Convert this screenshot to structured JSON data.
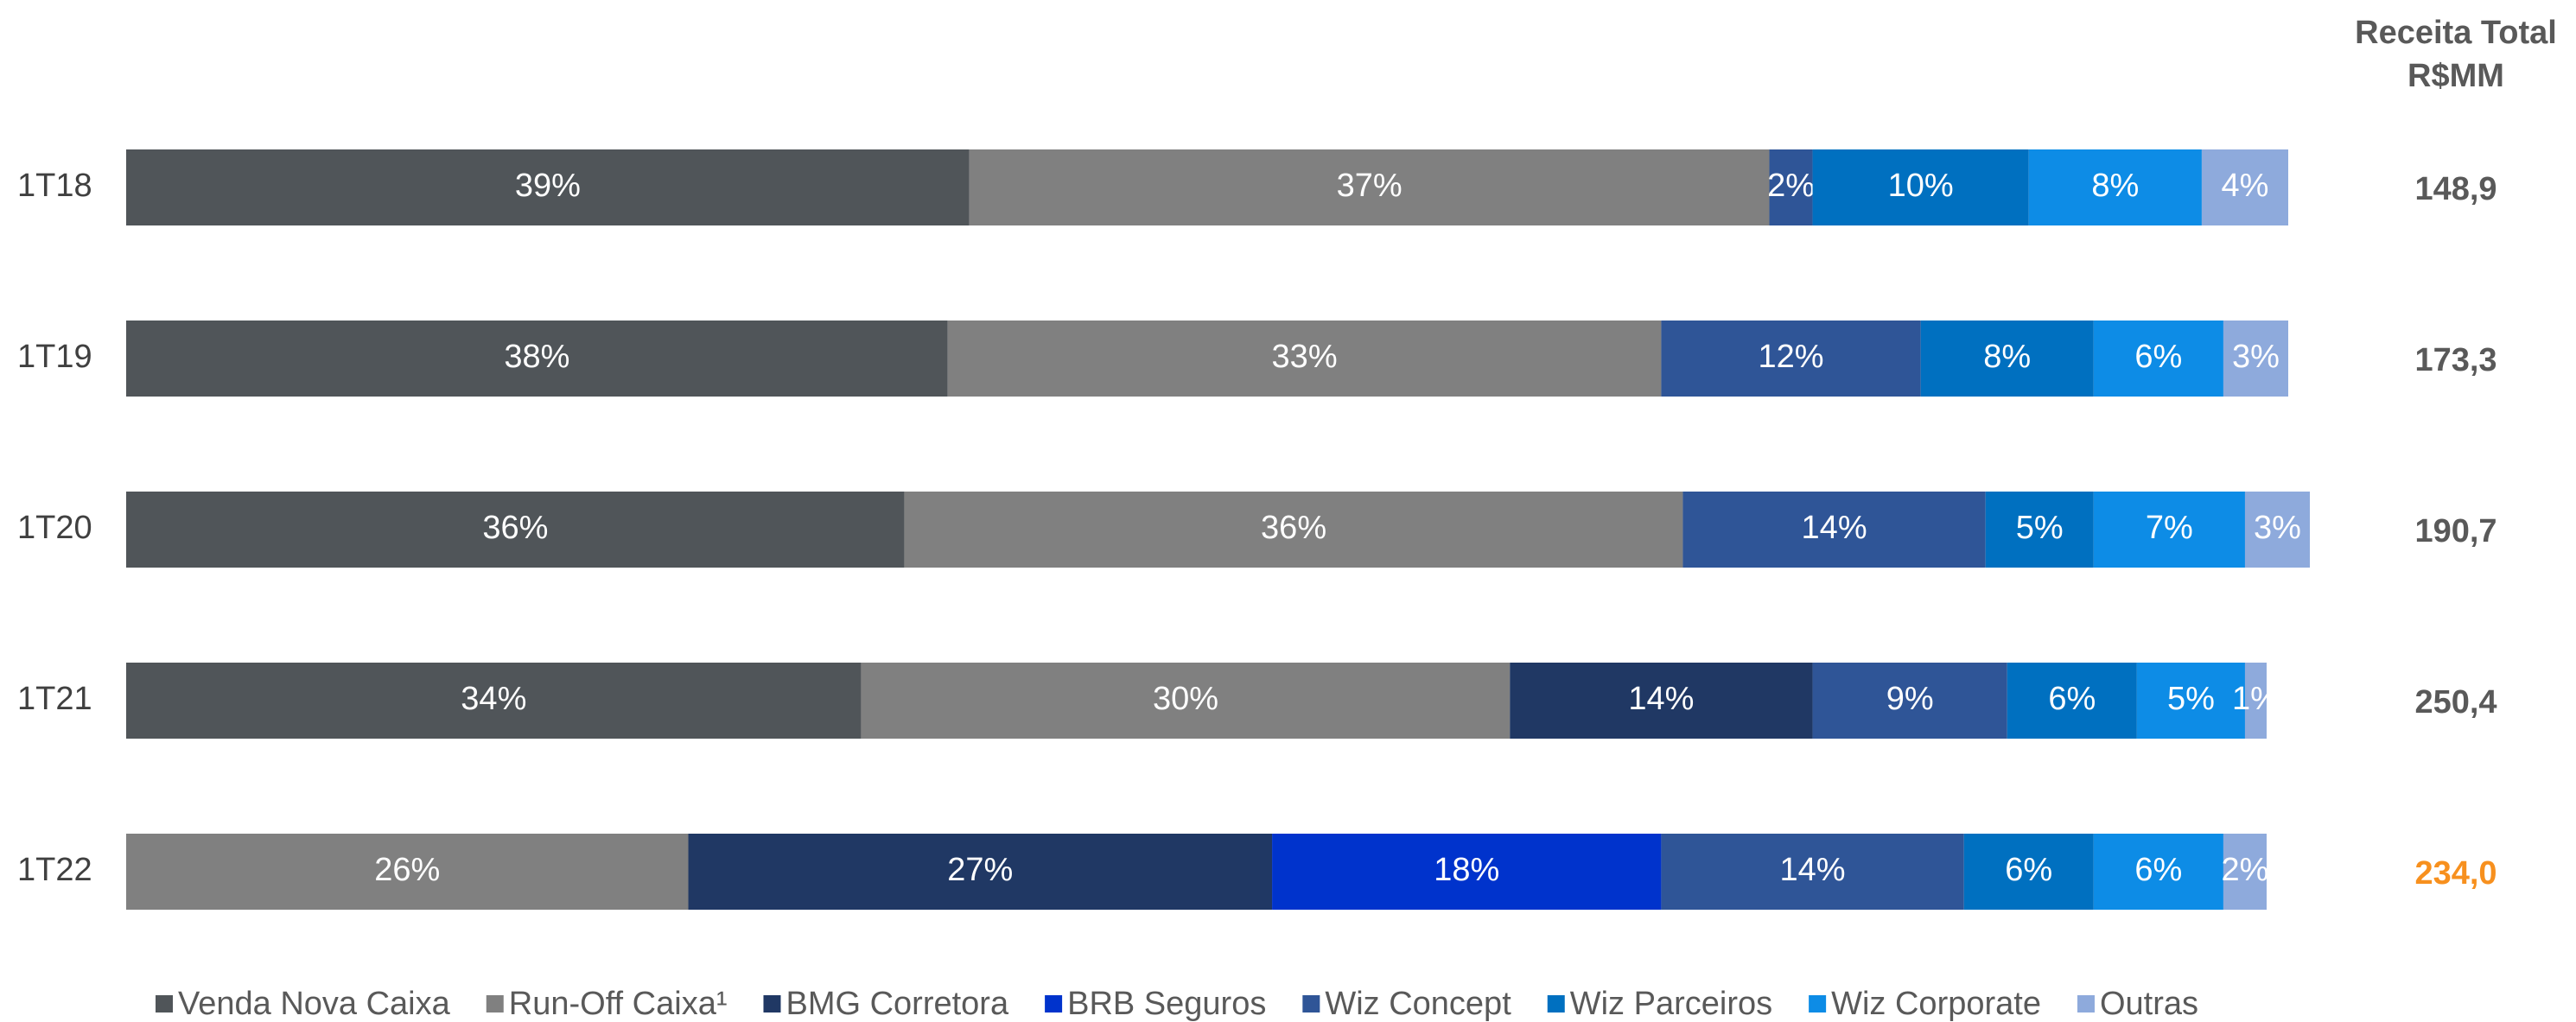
{
  "chart_data": {
    "type": "stacked_bar_h_100",
    "categories": [
      "1T18",
      "1T19",
      "1T20",
      "1T21",
      "1T22"
    ],
    "xlim": [
      0,
      100
    ],
    "series": [
      {
        "name": "Venda Nova Caixa",
        "color": "#505559",
        "values": [
          39,
          38,
          36,
          34,
          null
        ],
        "value_labels": [
          "39%",
          "38%",
          "36%",
          "34%",
          null
        ]
      },
      {
        "name": "Run-Off Caixa¹",
        "color": "#808080",
        "values": [
          37,
          33,
          36,
          30,
          26
        ],
        "value_labels": [
          "37%",
          "33%",
          "36%",
          "30%",
          "26%"
        ]
      },
      {
        "name": "BMG Corretora",
        "color": "#203864",
        "values": [
          null,
          null,
          null,
          14,
          27
        ],
        "value_labels": [
          null,
          null,
          null,
          "14%",
          "27%"
        ]
      },
      {
        "name": "BRB Seguros",
        "color": "#0033cc",
        "values": [
          null,
          null,
          null,
          null,
          18
        ],
        "value_labels": [
          null,
          null,
          null,
          null,
          "18%"
        ]
      },
      {
        "name": "Wiz Concept",
        "color": "#2f5597",
        "values": [
          2,
          12,
          14,
          9,
          14
        ],
        "value_labels": [
          "2%",
          "12%",
          "14%",
          "9%",
          "14%"
        ]
      },
      {
        "name": "Wiz Parceiros",
        "color": "#0070c0",
        "values": [
          10,
          8,
          5,
          6,
          6
        ],
        "value_labels": [
          "10%",
          "8%",
          "5%",
          "6%",
          "6%"
        ]
      },
      {
        "name": "Wiz Corporate",
        "color": "#0d8ce6",
        "values": [
          8,
          6,
          7,
          5,
          6
        ],
        "value_labels": [
          "8%",
          "6%",
          "7%",
          "5%",
          "6%"
        ]
      },
      {
        "name": "Outras",
        "color": "#8eaadc",
        "values": [
          4,
          3,
          3,
          1,
          2
        ],
        "value_labels": [
          "4%",
          "3%",
          "3%",
          "1%",
          "2%"
        ]
      }
    ],
    "totals_header": [
      "Receita Total",
      "R$MM"
    ],
    "totals": [
      "148,9",
      "173,3",
      "190,7",
      "250,4",
      "234,0"
    ],
    "totals_colors": [
      "#595959",
      "#595959",
      "#595959",
      "#595959",
      "#f7901e"
    ]
  }
}
